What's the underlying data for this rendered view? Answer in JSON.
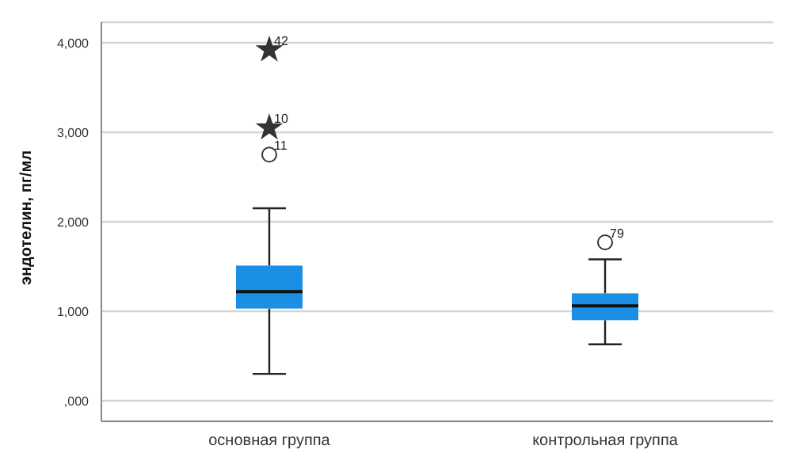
{
  "chart_data": {
    "type": "box",
    "ylabel": "эндотелин, пг/мл",
    "categories": [
      "основная группа",
      "контрольная группа"
    ],
    "series": [
      {
        "color": "#1a8fe3",
        "boxes": [
          {
            "low": 300,
            "q1": 1030,
            "median": 1220,
            "q3": 1510,
            "high": 2150
          },
          {
            "low": 630,
            "q1": 900,
            "median": 1060,
            "q3": 1200,
            "high": 1580
          }
        ]
      },
      {
        "type": "scatter",
        "marker": "circle",
        "color": "#333333",
        "x": [
          "основная группа",
          "контрольная группа"
        ],
        "values": [
          2750,
          1770
        ]
      },
      {
        "type": "scatter",
        "marker": "star",
        "color": "#333333",
        "x": [
          "основная группа",
          "основная группа"
        ],
        "values": [
          3050,
          3920
        ]
      }
    ],
    "ylim": [
      -230,
      4230
    ],
    "yticks": [
      {
        "value": 0,
        "label": ",000"
      },
      {
        "value": 1000,
        "label": "1,000"
      },
      {
        "value": 2000,
        "label": "2,000"
      },
      {
        "value": 3000,
        "label": "3,000"
      },
      {
        "value": 4000,
        "label": "4,000"
      }
    ],
    "grid": "y",
    "annotations": [
      {
        "text": "42",
        "x": "основная группа",
        "y": 3920
      },
      {
        "text": "10",
        "x": "основная группа",
        "y": 3050
      },
      {
        "text": "11",
        "x": "основная группа",
        "y": 2750
      },
      {
        "text": "79",
        "x": "контрольная группа",
        "y": 1770
      }
    ]
  }
}
